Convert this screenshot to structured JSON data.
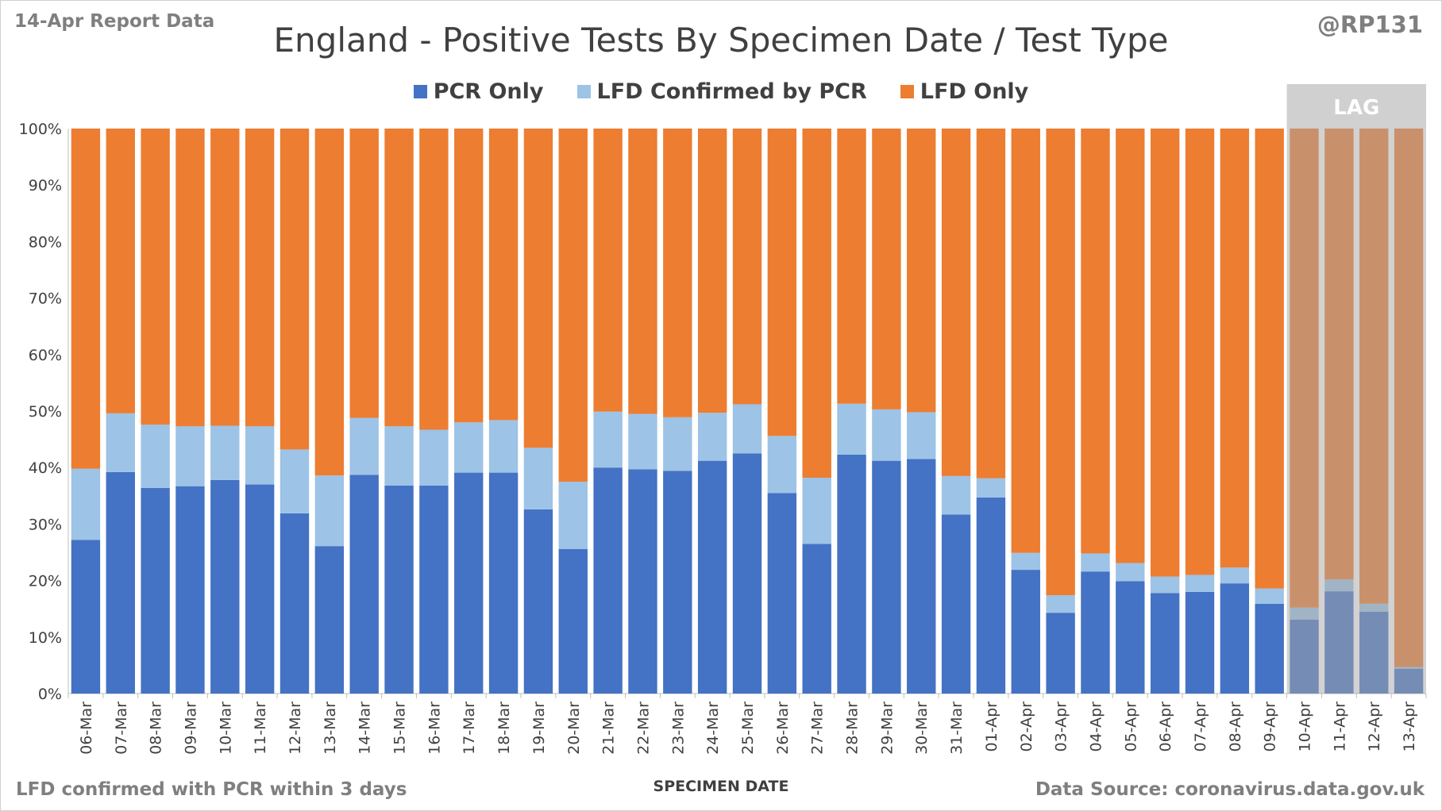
{
  "header": {
    "report_label": "14-Apr Report Data",
    "handle": "@RP131"
  },
  "footer": {
    "footnote": "LFD confirmed with PCR within 3 days",
    "source": "Data Source: coronavirus.data.gov.uk"
  },
  "chart_data": {
    "type": "bar",
    "stacked": true,
    "title": "England - Positive Tests By Specimen Date / Test Type",
    "xlabel": "SPECIMEN DATE",
    "ylabel": "",
    "ylim": [
      0,
      100
    ],
    "yticks": [
      "0%",
      "10%",
      "20%",
      "30%",
      "40%",
      "50%",
      "60%",
      "70%",
      "80%",
      "90%",
      "100%"
    ],
    "grid": false,
    "legend_position": "top-center",
    "categories": [
      "06-Mar",
      "07-Mar",
      "08-Mar",
      "09-Mar",
      "10-Mar",
      "11-Mar",
      "12-Mar",
      "13-Mar",
      "14-Mar",
      "15-Mar",
      "16-Mar",
      "17-Mar",
      "18-Mar",
      "19-Mar",
      "20-Mar",
      "21-Mar",
      "22-Mar",
      "23-Mar",
      "24-Mar",
      "25-Mar",
      "26-Mar",
      "27-Mar",
      "28-Mar",
      "29-Mar",
      "30-Mar",
      "31-Mar",
      "01-Apr",
      "02-Apr",
      "03-Apr",
      "04-Apr",
      "05-Apr",
      "06-Apr",
      "07-Apr",
      "08-Apr",
      "09-Apr",
      "10-Apr",
      "11-Apr",
      "12-Apr",
      "13-Apr"
    ],
    "series": [
      {
        "name": "PCR Only",
        "color": "#4472c4",
        "values": [
          27.2,
          39.2,
          36.4,
          36.7,
          37.8,
          37.0,
          31.9,
          26.1,
          38.7,
          36.8,
          36.8,
          39.1,
          39.1,
          32.6,
          25.6,
          40.0,
          39.7,
          39.4,
          41.2,
          42.5,
          35.5,
          26.5,
          42.3,
          41.2,
          41.5,
          31.7,
          34.7,
          21.9,
          14.3,
          21.6,
          19.9,
          17.8,
          18.0,
          19.5,
          15.9,
          13.1,
          18.1,
          14.5,
          4.4
        ]
      },
      {
        "name": "LFD Confirmed by PCR",
        "color": "#9dc3e6",
        "values": [
          12.6,
          10.4,
          11.2,
          10.6,
          9.6,
          10.3,
          11.3,
          12.5,
          10.1,
          10.5,
          9.9,
          8.9,
          9.3,
          10.9,
          11.9,
          9.9,
          9.8,
          9.5,
          8.5,
          8.7,
          10.1,
          11.7,
          9.0,
          9.1,
          8.3,
          6.8,
          3.4,
          3.0,
          3.1,
          3.2,
          3.2,
          2.9,
          3.0,
          2.8,
          2.7,
          2.1,
          2.1,
          1.4,
          0.3
        ]
      },
      {
        "name": "LFD Only",
        "color": "#ed7d31",
        "values": [
          60.2,
          50.4,
          52.4,
          52.7,
          52.6,
          52.7,
          56.8,
          61.4,
          51.2,
          52.7,
          53.3,
          52.0,
          51.6,
          56.5,
          62.5,
          50.1,
          50.5,
          51.1,
          50.3,
          48.8,
          54.4,
          61.8,
          48.7,
          49.7,
          50.2,
          61.5,
          61.9,
          75.1,
          82.6,
          75.2,
          76.9,
          79.3,
          79.0,
          77.7,
          81.4,
          84.8,
          79.8,
          84.1,
          95.3
        ]
      }
    ],
    "annotations": [
      {
        "text": "LAG",
        "x_start": "10-Apr",
        "x_end": "13-Apr",
        "shading": "grey overlay"
      }
    ]
  }
}
